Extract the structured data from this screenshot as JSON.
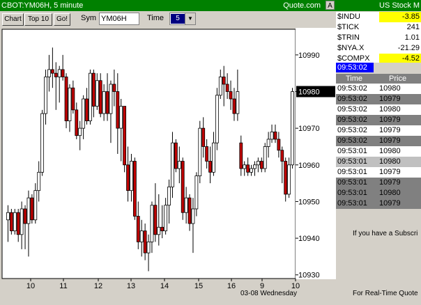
{
  "window": {
    "title": "CBOT:YM06H, 5 minute",
    "source": "Quote.com",
    "corner_button": "A"
  },
  "toolbar": {
    "chart_label": "Chart",
    "top10_label": "Top 10",
    "go_label": "Go!",
    "sym_label": "Sym",
    "sym_value": "YM06H",
    "time_label": "Time",
    "time_value": "5"
  },
  "chart_data": {
    "type": "candlestick",
    "title": "",
    "xlabel": "",
    "ylabel": "",
    "ylim": [
      10929,
      10997
    ],
    "y_ticks": [
      10930,
      10940,
      10950,
      10960,
      10970,
      10980,
      10990
    ],
    "x_ticks": [
      "10",
      "11",
      "12",
      "13",
      "14",
      "15",
      "16",
      "9",
      "10"
    ],
    "x_footnote": "03-08 Wednesday",
    "last_price_label": "10980",
    "colors": {
      "up": "#ffffff",
      "down": "#c00000",
      "outline": "#000000"
    },
    "candles": [
      {
        "o": 10945,
        "h": 10949,
        "l": 10939,
        "c": 10947
      },
      {
        "o": 10947,
        "h": 10948,
        "l": 10941,
        "c": 10942
      },
      {
        "o": 10942,
        "h": 10948,
        "l": 10941,
        "c": 10947
      },
      {
        "o": 10947,
        "h": 10948,
        "l": 10939,
        "c": 10941
      },
      {
        "o": 10941,
        "h": 10950,
        "l": 10937,
        "c": 10948
      },
      {
        "o": 10948,
        "h": 10949,
        "l": 10937,
        "c": 10944
      },
      {
        "o": 10944,
        "h": 10953,
        "l": 10935,
        "c": 10951
      },
      {
        "o": 10951,
        "h": 10952,
        "l": 10944,
        "c": 10945
      },
      {
        "o": 10945,
        "h": 10955,
        "l": 10944,
        "c": 10953
      },
      {
        "o": 10953,
        "h": 10961,
        "l": 10950,
        "c": 10958
      },
      {
        "o": 10958,
        "h": 10975,
        "l": 10957,
        "c": 10974
      },
      {
        "o": 10974,
        "h": 10986,
        "l": 10971,
        "c": 10984
      },
      {
        "o": 10984,
        "h": 10990,
        "l": 10980,
        "c": 10986
      },
      {
        "o": 10986,
        "h": 10992,
        "l": 10981,
        "c": 10985
      },
      {
        "o": 10985,
        "h": 10988,
        "l": 10975,
        "c": 10984
      },
      {
        "o": 10984,
        "h": 10987,
        "l": 10977,
        "c": 10986
      },
      {
        "o": 10986,
        "h": 10990,
        "l": 10983,
        "c": 10984
      },
      {
        "o": 10984,
        "h": 10985,
        "l": 10970,
        "c": 10972
      },
      {
        "o": 10972,
        "h": 10982,
        "l": 10969,
        "c": 10981
      },
      {
        "o": 10981,
        "h": 10983,
        "l": 10974,
        "c": 10975
      },
      {
        "o": 10975,
        "h": 10977,
        "l": 10967,
        "c": 10968
      },
      {
        "o": 10968,
        "h": 10972,
        "l": 10964,
        "c": 10970
      },
      {
        "o": 10970,
        "h": 10979,
        "l": 10967,
        "c": 10978
      },
      {
        "o": 10978,
        "h": 10981,
        "l": 10971,
        "c": 10972
      },
      {
        "o": 10972,
        "h": 10986,
        "l": 10971,
        "c": 10985
      },
      {
        "o": 10985,
        "h": 10986,
        "l": 10973,
        "c": 10976
      },
      {
        "o": 10976,
        "h": 10985,
        "l": 10975,
        "c": 10983
      },
      {
        "o": 10983,
        "h": 10985,
        "l": 10973,
        "c": 10974
      },
      {
        "o": 10974,
        "h": 10982,
        "l": 10972,
        "c": 10980
      },
      {
        "o": 10980,
        "h": 10985,
        "l": 10972,
        "c": 10974
      },
      {
        "o": 10974,
        "h": 10983,
        "l": 10966,
        "c": 10982
      },
      {
        "o": 10982,
        "h": 10986,
        "l": 10976,
        "c": 10980
      },
      {
        "o": 10980,
        "h": 10985,
        "l": 10963,
        "c": 10970
      },
      {
        "o": 10970,
        "h": 10978,
        "l": 10961,
        "c": 10976
      },
      {
        "o": 10976,
        "h": 10976,
        "l": 10958,
        "c": 10960
      },
      {
        "o": 10960,
        "h": 10965,
        "l": 10950,
        "c": 10953
      },
      {
        "o": 10953,
        "h": 10963,
        "l": 10950,
        "c": 10961
      },
      {
        "o": 10961,
        "h": 10962,
        "l": 10945,
        "c": 10946
      },
      {
        "o": 10946,
        "h": 10950,
        "l": 10937,
        "c": 10939
      },
      {
        "o": 10939,
        "h": 10945,
        "l": 10935,
        "c": 10942
      },
      {
        "o": 10942,
        "h": 10944,
        "l": 10934,
        "c": 10936
      },
      {
        "o": 10936,
        "h": 10941,
        "l": 10931,
        "c": 10939
      },
      {
        "o": 10939,
        "h": 10950,
        "l": 10936,
        "c": 10949
      },
      {
        "o": 10949,
        "h": 10955,
        "l": 10939,
        "c": 10941
      },
      {
        "o": 10941,
        "h": 10952,
        "l": 10938,
        "c": 10943
      },
      {
        "o": 10943,
        "h": 10949,
        "l": 10940,
        "c": 10942
      },
      {
        "o": 10942,
        "h": 10951,
        "l": 10941,
        "c": 10949
      },
      {
        "o": 10949,
        "h": 10956,
        "l": 10944,
        "c": 10954
      },
      {
        "o": 10954,
        "h": 10969,
        "l": 10951,
        "c": 10966
      },
      {
        "o": 10966,
        "h": 10967,
        "l": 10958,
        "c": 10959
      },
      {
        "o": 10959,
        "h": 10965,
        "l": 10955,
        "c": 10961
      },
      {
        "o": 10961,
        "h": 10962,
        "l": 10945,
        "c": 10947
      },
      {
        "o": 10947,
        "h": 10954,
        "l": 10944,
        "c": 10951
      },
      {
        "o": 10951,
        "h": 10952,
        "l": 10942,
        "c": 10944
      },
      {
        "o": 10944,
        "h": 10951,
        "l": 10936,
        "c": 10948
      },
      {
        "o": 10948,
        "h": 10958,
        "l": 10946,
        "c": 10957
      },
      {
        "o": 10957,
        "h": 10972,
        "l": 10955,
        "c": 10970
      },
      {
        "o": 10970,
        "h": 10973,
        "l": 10962,
        "c": 10965
      },
      {
        "o": 10965,
        "h": 10967,
        "l": 10959,
        "c": 10961
      },
      {
        "o": 10961,
        "h": 10965,
        "l": 10955,
        "c": 10958
      },
      {
        "o": 10958,
        "h": 10969,
        "l": 10957,
        "c": 10966
      },
      {
        "o": 10966,
        "h": 10981,
        "l": 10964,
        "c": 10979
      },
      {
        "o": 10979,
        "h": 10986,
        "l": 10978,
        "c": 10984
      },
      {
        "o": 10984,
        "h": 10987,
        "l": 10976,
        "c": 10982
      },
      {
        "o": 10982,
        "h": 10985,
        "l": 10978,
        "c": 10980
      },
      {
        "o": 10980,
        "h": 10983,
        "l": 10975,
        "c": 10978
      },
      {
        "o": 10978,
        "h": 10981,
        "l": 10972,
        "c": 10974
      },
      {
        "o": 10974,
        "h": 10986,
        "l": 10972,
        "c": 10980
      },
      {
        "o": 10966,
        "h": 10968,
        "l": 10957,
        "c": 10959
      },
      {
        "o": 10959,
        "h": 10961,
        "l": 10957,
        "c": 10960
      },
      {
        "o": 10960,
        "h": 10962,
        "l": 10957,
        "c": 10958
      },
      {
        "o": 10958,
        "h": 10960,
        "l": 10957,
        "c": 10959
      },
      {
        "o": 10959,
        "h": 10961,
        "l": 10957,
        "c": 10960
      },
      {
        "o": 10960,
        "h": 10962,
        "l": 10958,
        "c": 10961
      },
      {
        "o": 10961,
        "h": 10962,
        "l": 10958,
        "c": 10959
      },
      {
        "o": 10959,
        "h": 10966,
        "l": 10958,
        "c": 10965
      },
      {
        "o": 10965,
        "h": 10969,
        "l": 10962,
        "c": 10967
      },
      {
        "o": 10967,
        "h": 10971,
        "l": 10966,
        "c": 10969
      },
      {
        "o": 10969,
        "h": 10971,
        "l": 10966,
        "c": 10967
      },
      {
        "o": 10967,
        "h": 10969,
        "l": 10962,
        "c": 10964
      },
      {
        "o": 10964,
        "h": 10965,
        "l": 10955,
        "c": 10961
      },
      {
        "o": 10961,
        "h": 10962,
        "l": 10950,
        "c": 10952
      },
      {
        "o": 10952,
        "h": 10962,
        "l": 10951,
        "c": 10960
      },
      {
        "o": 10960,
        "h": 10981,
        "l": 10959,
        "c": 10980
      }
    ]
  },
  "sidebar": {
    "header": "US Stock M",
    "indices": [
      {
        "name": "$INDU",
        "value": "-3.85",
        "highlight": true
      },
      {
        "name": "$TICK",
        "value": "241",
        "highlight": false
      },
      {
        "name": "$TRIN",
        "value": "1.01",
        "highlight": false
      },
      {
        "name": "$NYA.X",
        "value": "-21.29",
        "highlight": false
      },
      {
        "name": "$COMPX",
        "value": "-4.52",
        "highlight": true
      }
    ],
    "clock": "09:53:02",
    "trades_header": {
      "time": "Time",
      "price": "Price"
    },
    "trades": [
      {
        "time": "09:53:02",
        "price": "10980",
        "shade": "w"
      },
      {
        "time": "09:53:02",
        "price": "10979",
        "shade": "g"
      },
      {
        "time": "09:53:02",
        "price": "10980",
        "shade": "w"
      },
      {
        "time": "09:53:02",
        "price": "10979",
        "shade": "g"
      },
      {
        "time": "09:53:02",
        "price": "10979",
        "shade": "w"
      },
      {
        "time": "09:53:02",
        "price": "10979",
        "shade": "g"
      },
      {
        "time": "09:53:01",
        "price": "10980",
        "shade": "w"
      },
      {
        "time": "09:53:01",
        "price": "10980",
        "shade": "lg"
      },
      {
        "time": "09:53:01",
        "price": "10979",
        "shade": "w"
      },
      {
        "time": "09:53:01",
        "price": "10979",
        "shade": "g"
      },
      {
        "time": "09:53:01",
        "price": "10980",
        "shade": "g"
      },
      {
        "time": "09:53:01",
        "price": "10979",
        "shade": "g"
      }
    ],
    "message1": "If you have a Subscri",
    "message2": "For Real-Time Quote"
  }
}
